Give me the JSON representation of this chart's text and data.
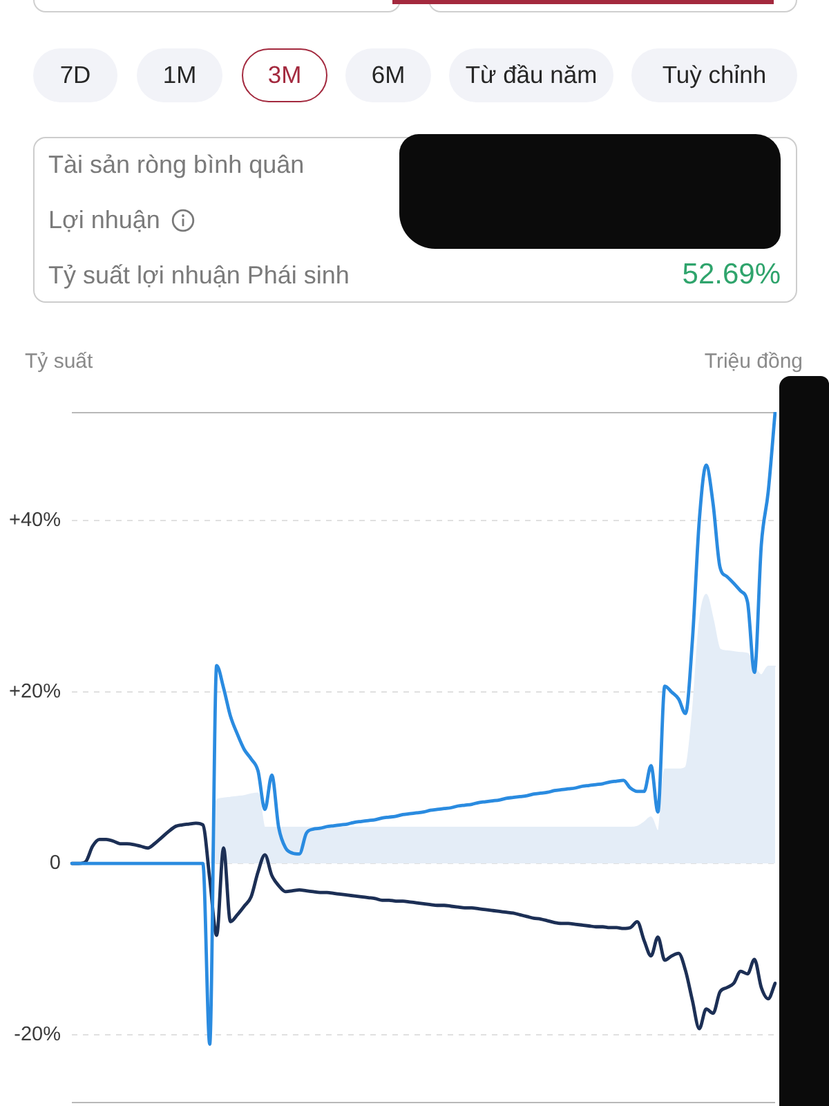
{
  "chart_data": {
    "type": "line",
    "ylabel": "Tỷ suất",
    "y2label": "Triệu đồng",
    "annotations": [
      "7D",
      "1M",
      "3M",
      "6M",
      "Từ đầu năm",
      "Tuỳ chỉnh",
      "Tài sản ròng bình quân",
      "Lợi nhuận",
      "Tỷ suất lợi nhuận Phái sinh",
      "52.69%"
    ],
    "categories": [
      null,
      null,
      null,
      null,
      null,
      null,
      null,
      null,
      null,
      null,
      null,
      null,
      null,
      null,
      null,
      null,
      null,
      null,
      null,
      null,
      null,
      null,
      null,
      null,
      null,
      null,
      null,
      null,
      null,
      null,
      null,
      null,
      null,
      null,
      null,
      null,
      null,
      null,
      null,
      null,
      null,
      null,
      null,
      null,
      null,
      null,
      null,
      null,
      null,
      null,
      null,
      null,
      null,
      null,
      null,
      null,
      null,
      null,
      null,
      null,
      null,
      null,
      null,
      null,
      null,
      null,
      null,
      null,
      null,
      null,
      null,
      null,
      null,
      null,
      null,
      null,
      null,
      null,
      null,
      null,
      null,
      null,
      null,
      null,
      null,
      null,
      null,
      null,
      null,
      null,
      null,
      null,
      null,
      null,
      null,
      null,
      null,
      null,
      null,
      null,
      null,
      null,
      null
    ],
    "series": [
      {
        "type": "area",
        "color": "#e4edf7",
        "values": [
          0,
          0,
          0,
          0,
          0,
          0,
          0,
          0,
          0,
          0,
          0,
          0,
          0,
          0,
          0,
          0,
          0,
          0,
          0,
          0,
          0,
          7.4,
          7.6,
          7.7,
          7.8,
          7.9,
          8.1,
          8.2,
          4.2,
          4.2,
          4.2,
          4.2,
          4.2,
          4.2,
          4.2,
          4.2,
          4.2,
          4.2,
          4.2,
          4.2,
          4.2,
          4.2,
          4.2,
          4.2,
          4.2,
          4.2,
          4.2,
          4.2,
          4.2,
          4.2,
          4.2,
          4.2,
          4.2,
          4.2,
          4.2,
          4.2,
          4.2,
          4.2,
          4.2,
          4.2,
          4.2,
          4.2,
          4.2,
          4.2,
          4.2,
          4.2,
          4.2,
          4.2,
          4.2,
          4.2,
          4.2,
          4.2,
          4.2,
          4.2,
          4.2,
          4.2,
          4.2,
          4.2,
          4.2,
          4.2,
          4.2,
          4.2,
          4.3,
          4.8,
          5.4,
          3.8,
          11.0,
          11.0,
          11.0,
          11.2,
          17.4,
          28.0,
          31.4,
          28.5,
          25.0,
          24.8,
          24.7,
          24.6,
          24.5,
          23.0,
          22.0,
          23.0,
          23.0
        ]
      },
      {
        "type": "line",
        "color": "#1c2f55",
        "values": [
          0,
          0,
          0.2,
          2.0,
          2.8,
          2.8,
          2.6,
          2.3,
          2.3,
          2.2,
          2.0,
          1.8,
          2.3,
          3.0,
          3.7,
          4.3,
          4.5,
          4.6,
          4.7,
          4.5,
          -1.8,
          -8.4,
          1.8,
          -6.8,
          -6.0,
          -5.0,
          -3.9,
          -1.0,
          1.0,
          -1.4,
          -2.6,
          -3.3,
          -3.2,
          -3.1,
          -3.2,
          -3.3,
          -3.4,
          -3.4,
          -3.5,
          -3.6,
          -3.7,
          -3.8,
          -3.9,
          -4.0,
          -4.1,
          -4.3,
          -4.3,
          -4.4,
          -4.4,
          -4.5,
          -4.6,
          -4.7,
          -4.8,
          -4.9,
          -4.9,
          -5.0,
          -5.1,
          -5.2,
          -5.2,
          -5.3,
          -5.4,
          -5.5,
          -5.6,
          -5.7,
          -5.8,
          -6.0,
          -6.2,
          -6.4,
          -6.5,
          -6.7,
          -6.9,
          -7.0,
          -7.0,
          -7.1,
          -7.2,
          -7.3,
          -7.4,
          -7.4,
          -7.5,
          -7.5,
          -7.6,
          -7.5,
          -6.8,
          -9.0,
          -10.8,
          -8.6,
          -11.3,
          -10.8,
          -10.5,
          -12.5,
          -16.0,
          -19.3,
          -17.0,
          -17.5,
          -15.0,
          -14.5,
          -14.0,
          -12.6,
          -12.9,
          -11.2,
          -14.5,
          -15.8,
          -14.0
        ]
      },
      {
        "type": "line",
        "color": "#2a8be0",
        "values": [
          0,
          0,
          0,
          0,
          0,
          0,
          0,
          0,
          0,
          0,
          0,
          0,
          0,
          0,
          0,
          0,
          0,
          0,
          0,
          0,
          -21.1,
          23.1,
          20.5,
          17.2,
          15.1,
          13.3,
          12.2,
          10.8,
          6.3,
          10.3,
          4.2,
          1.8,
          1.2,
          1.1,
          3.5,
          4.0,
          4.1,
          4.3,
          4.4,
          4.5,
          4.6,
          4.8,
          4.9,
          5.0,
          5.1,
          5.3,
          5.4,
          5.5,
          5.7,
          5.8,
          5.9,
          6.0,
          6.2,
          6.3,
          6.4,
          6.5,
          6.7,
          6.8,
          6.9,
          7.1,
          7.2,
          7.3,
          7.4,
          7.6,
          7.7,
          7.8,
          7.9,
          8.1,
          8.2,
          8.3,
          8.5,
          8.6,
          8.7,
          8.8,
          9.0,
          9.1,
          9.2,
          9.3,
          9.5,
          9.6,
          9.7,
          8.8,
          8.4,
          8.4,
          11.4,
          6.0,
          20.7,
          20.0,
          19.2,
          17.5,
          26.0,
          40.0,
          46.5,
          42.0,
          34.6,
          33.5,
          32.7,
          31.8,
          30.5,
          22.3,
          37.2,
          43.4,
          52.7
        ]
      }
    ],
    "ylim": [
      -28,
      52.7
    ],
    "yticks": [
      {
        "value": -20,
        "label": "-20%"
      },
      0,
      {
        "value": 20,
        "label": "+20%"
      },
      {
        "value": 40,
        "label": "+40%"
      }
    ],
    "grid": "y",
    "legend": false,
    "marker": "none"
  }
}
